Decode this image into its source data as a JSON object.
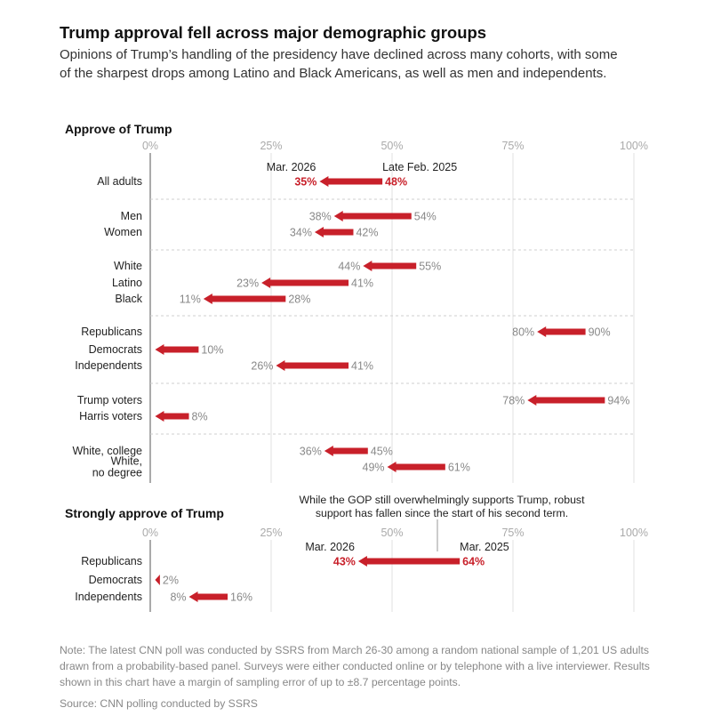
{
  "title": "Trump approval fell across major demographic groups",
  "subtitle": "Opinions of Trump’s handling of the presidency have declined across many cohorts, with some of the sharpest drops among Latino and Black Americans, as well as men and independents.",
  "note": "Note: The latest CNN poll was conducted by SSRS from March 26-30 among a random national sample of 1,201 US adults drawn from a probability-based panel. Surveys were either conducted online or by telephone with a live interviewer. Results shown in this chart have a margin of sampling error of up to ±8.7 percentage points.",
  "source": "Source: CNN polling conducted by SSRS",
  "colors": {
    "arrow": "#c8202a",
    "highlight": "#c8202a",
    "muted": "#888888"
  },
  "chart_data": [
    {
      "type": "arrow-dot",
      "title": "Approve of Trump",
      "xlim": [
        0,
        100
      ],
      "ticks": [
        "0%",
        "25%",
        "50%",
        "75%",
        "100%"
      ],
      "series_labels": {
        "start": "Late Feb. 2025",
        "end": "Mar. 2026"
      },
      "rows": [
        {
          "label": "All adults",
          "start": 48,
          "end": 35,
          "start_label": "48%",
          "end_label": "35%",
          "highlight": true
        },
        {
          "label": "Men",
          "start": 54,
          "end": 38,
          "start_label": "54%",
          "end_label": "38%"
        },
        {
          "label": "Women",
          "start": 42,
          "end": 34,
          "start_label": "42%",
          "end_label": "34%"
        },
        {
          "label": "White",
          "start": 55,
          "end": 44,
          "start_label": "55%",
          "end_label": "44%"
        },
        {
          "label": "Latino",
          "start": 41,
          "end": 23,
          "start_label": "41%",
          "end_label": "23%"
        },
        {
          "label": "Black",
          "start": 28,
          "end": 11,
          "start_label": "28%",
          "end_label": "11%"
        },
        {
          "label": "Republicans",
          "start": 90,
          "end": 80,
          "start_label": "90%",
          "end_label": "80%"
        },
        {
          "label": "Democrats",
          "start": 10,
          "end": 1,
          "start_label": "10%",
          "end_label": ""
        },
        {
          "label": "Independents",
          "start": 41,
          "end": 26,
          "start_label": "41%",
          "end_label": "26%"
        },
        {
          "label": "Trump voters",
          "start": 94,
          "end": 78,
          "start_label": "94%",
          "end_label": "78%"
        },
        {
          "label": "Harris voters",
          "start": 8,
          "end": 1,
          "start_label": "8%",
          "end_label": ""
        },
        {
          "label": "White, college",
          "start": 45,
          "end": 36,
          "start_label": "45%",
          "end_label": "36%"
        },
        {
          "label": "White,\nno degree",
          "start": 61,
          "end": 49,
          "start_label": "61%",
          "end_label": "49%"
        }
      ]
    },
    {
      "type": "arrow-dot",
      "title": "Strongly approve of Trump",
      "xlim": [
        0,
        100
      ],
      "ticks": [
        "0%",
        "25%",
        "50%",
        "75%",
        "100%"
      ],
      "series_labels": {
        "start": "Mar. 2025",
        "end": "Mar. 2026"
      },
      "annotation": "While the GOP still overwhelmingly supports Trump, robust support has fallen since the start of his second term.",
      "rows": [
        {
          "label": "Republicans",
          "start": 64,
          "end": 43,
          "start_label": "64%",
          "end_label": "43%",
          "highlight": true
        },
        {
          "label": "Democrats",
          "start": 2,
          "end": 1,
          "start_label": "2%",
          "end_label": ""
        },
        {
          "label": "Independents",
          "start": 16,
          "end": 8,
          "start_label": "16%",
          "end_label": "8%"
        }
      ]
    }
  ]
}
